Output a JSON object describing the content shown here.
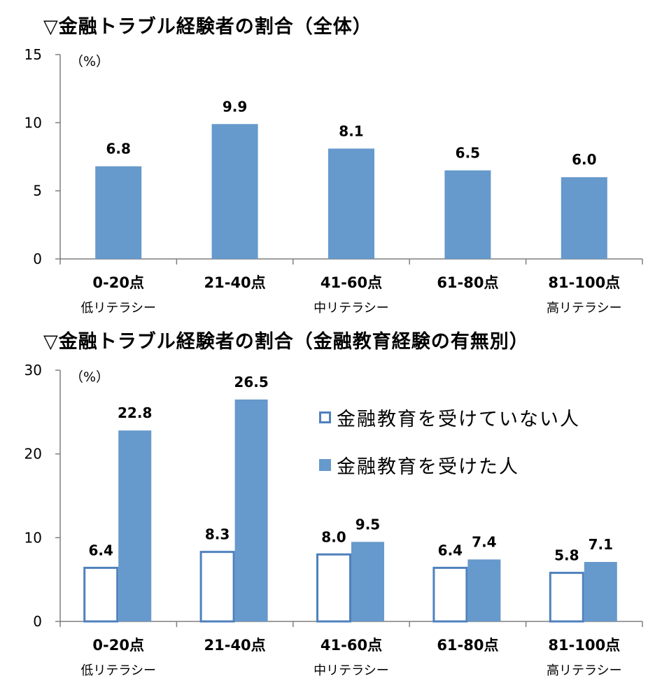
{
  "colors": {
    "bar": "#6699cc",
    "hollow_stroke": "#4f81bd",
    "axis": "#7f7f7f"
  },
  "chart_data": [
    {
      "type": "bar",
      "title": "▽金融トラブル経験者の割合（全体）",
      "unit": "（%）",
      "categories": [
        "0-20点",
        "21-40点",
        "41-60点",
        "61-80点",
        "81-100点"
      ],
      "sublabels": [
        "低リテラシー",
        "",
        "中リテラシー",
        "",
        "高リテラシー"
      ],
      "values": [
        6.8,
        9.9,
        8.1,
        6.5,
        6.0
      ],
      "value_labels": [
        "6.8",
        "9.9",
        "8.1",
        "6.5",
        "6.0"
      ],
      "ylim": [
        0,
        15
      ],
      "yticks": [
        "0",
        "5",
        "10",
        "15"
      ]
    },
    {
      "type": "bar",
      "title": "▽金融トラブル経験者の割合（金融教育経験の有無別）",
      "unit": "（%）",
      "categories": [
        "0-20点",
        "21-40点",
        "41-60点",
        "61-80点",
        "81-100点"
      ],
      "sublabels": [
        "低リテラシー",
        "",
        "中リテラシー",
        "",
        "高リテラシー"
      ],
      "series": [
        {
          "name": "金融教育を受けていない人",
          "values": [
            6.4,
            8.3,
            8.0,
            6.4,
            5.8
          ],
          "value_labels": [
            "6.4",
            "8.3",
            "8.0",
            "6.4",
            "5.8"
          ]
        },
        {
          "name": "金融教育を受けた人",
          "values": [
            22.8,
            26.5,
            9.5,
            7.4,
            7.1
          ],
          "value_labels": [
            "22.8",
            "26.5",
            "9.5",
            "7.4",
            "7.1"
          ]
        }
      ],
      "ylim": [
        0,
        30
      ],
      "yticks": [
        "0",
        "10",
        "20",
        "30"
      ],
      "legend_position": "top-right"
    }
  ]
}
